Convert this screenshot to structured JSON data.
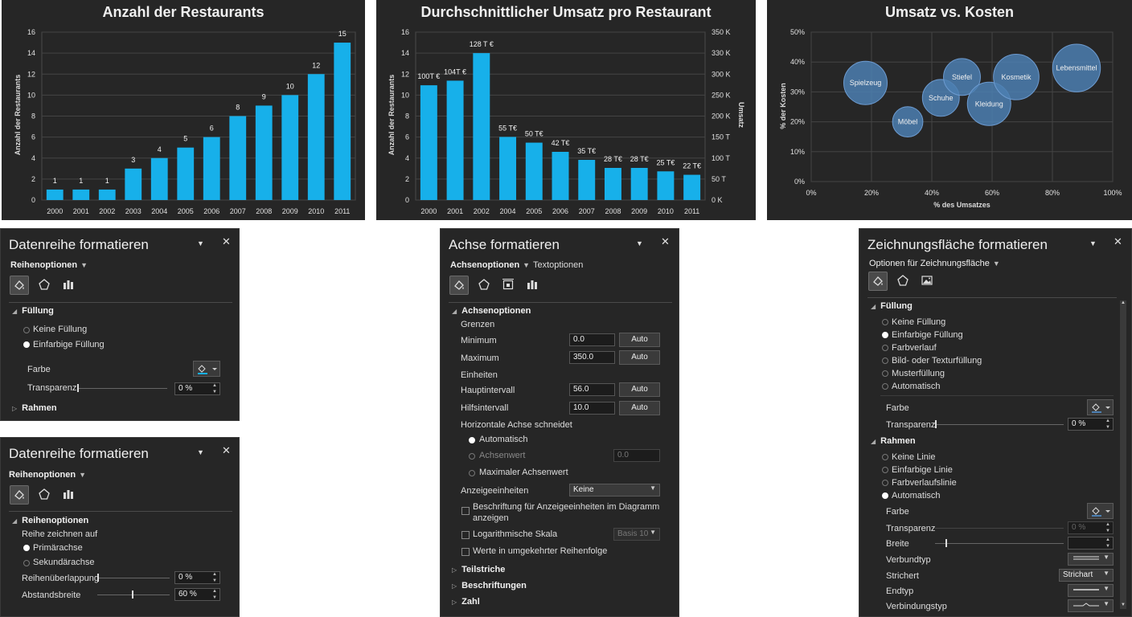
{
  "chart_data": [
    {
      "type": "bar",
      "title": "Anzahl der Restaurants",
      "ylabel": "Anzahl der Restaurants",
      "xlabel": "",
      "categories": [
        "2000",
        "2001",
        "2002",
        "2003",
        "2004",
        "2005",
        "2006",
        "2007",
        "2008",
        "2009",
        "2010",
        "2011"
      ],
      "values": [
        1,
        1,
        1,
        3,
        4,
        5,
        6,
        8,
        9,
        10,
        12,
        15
      ],
      "data_labels": [
        "1",
        "1",
        "1",
        "3",
        "4",
        "5",
        "6",
        "8",
        "9",
        "10",
        "12",
        "15"
      ],
      "ylim": [
        0,
        16
      ],
      "yticks": [
        "0",
        "2",
        "4",
        "6",
        "8",
        "10",
        "12",
        "14",
        "16"
      ],
      "bar_color": "#17b0ea",
      "grid": true
    },
    {
      "type": "bar",
      "title": "Durchschnittlicher Umsatz pro Restaurant",
      "ylabel": "Anzahl der Restaurants",
      "y2label": "Umsatz",
      "categories": [
        "2000",
        "2001",
        "2002",
        "2004",
        "2005",
        "2006",
        "2007",
        "2008",
        "2009",
        "2010",
        "2011"
      ],
      "values": [
        100,
        104,
        128,
        55,
        50,
        42,
        35,
        28,
        28,
        25,
        22
      ],
      "data_labels": [
        "100T €",
        "104T €",
        "128 T €",
        "55 T€",
        "50 T€",
        "42 T€",
        "35 T€",
        "28 T€",
        "28 T€",
        "25 T€",
        "22 T€"
      ],
      "ylim": [
        0,
        16
      ],
      "yticks": [
        "0",
        "2",
        "4",
        "6",
        "8",
        "10",
        "12",
        "14",
        "16"
      ],
      "y2lim": [
        0,
        350
      ],
      "y2ticks": [
        "0 K",
        "50 T",
        "100 T",
        "150 T",
        "200 K",
        "250 K",
        "300 K",
        "330 K",
        "350 K"
      ],
      "bar_color": "#17b0ea",
      "grid": true
    },
    {
      "type": "scatter",
      "title": "Umsatz vs. Kosten",
      "xlabel": "% des Umsatzes",
      "ylabel": "% der Kosten",
      "xlim": [
        0,
        100
      ],
      "ylim": [
        0,
        50
      ],
      "xticks": [
        "0%",
        "20%",
        "40%",
        "60%",
        "80%",
        "100%"
      ],
      "yticks": [
        "0%",
        "10%",
        "20%",
        "30%",
        "40%",
        "50%"
      ],
      "points": [
        {
          "label": "Spielzeug",
          "x": 18,
          "y": 33,
          "size": 1.0
        },
        {
          "label": "Möbel",
          "x": 32,
          "y": 20,
          "size": 0.7
        },
        {
          "label": "Schuhe",
          "x": 43,
          "y": 28,
          "size": 0.85
        },
        {
          "label": "Stiefel",
          "x": 50,
          "y": 35,
          "size": 0.85
        },
        {
          "label": "Kleidung",
          "x": 59,
          "y": 26,
          "size": 1.0
        },
        {
          "label": "Kosmetik",
          "x": 68,
          "y": 35,
          "size": 1.05
        },
        {
          "label": "Lebensmittel",
          "x": 88,
          "y": 38,
          "size": 1.1
        }
      ],
      "bubble_color": "#4c7fb2",
      "grid": true
    }
  ],
  "pane1": {
    "title": "Datenreihe formatieren",
    "options_label": "Reihenoptionen",
    "section_fill": "Füllung",
    "no_fill": "Keine Füllung",
    "solid_fill": "Einfarbige Füllung",
    "color_label": "Farbe",
    "transparency_label": "Transparenz",
    "transparency_value": "0 %",
    "transparency": 0,
    "section_border": "Rahmen"
  },
  "pane2": {
    "title": "Datenreihe formatieren",
    "options_label": "Reihenoptionen",
    "section": "Reihenoptionen",
    "plot_on_label": "Reihe zeichnen auf",
    "primary_axis": "Primärachse",
    "secondary_axis": "Sekundärachse",
    "overlap_label": "Reihenüberlappung",
    "overlap_value": "0 %",
    "overlap": 0,
    "gap_label": "Abstandsbreite",
    "gap_value": "60 %",
    "gap": 0.6
  },
  "pane3": {
    "title": "Achse formatieren",
    "tab_axis": "Achsenoptionen",
    "tab_text": "Textoptionen",
    "section": "Achsenoptionen",
    "bounds_label": "Grenzen",
    "minimum_label": "Minimum",
    "minimum_value": "0.0",
    "maximum_label": "Maximum",
    "maximum_value": "350.0",
    "auto_label": "Auto",
    "units_label": "Einheiten",
    "major_label": "Hauptintervall",
    "major_value": "56.0",
    "minor_label": "Hilfsintervall",
    "minor_value": "10.0",
    "crosses_label": "Horizontale Achse schneidet",
    "crosses_auto": "Automatisch",
    "crosses_value": "Achsenwert",
    "crosses_value_field": "0.0",
    "crosses_max": "Maximaler Achsenwert",
    "display_units_label": "Anzeigeeinheiten",
    "display_units_value": "Keine",
    "show_units_label_line1": "Beschriftung für Anzeigeeinheiten im Diagramm",
    "show_units_label_line2": "anzeigen",
    "log_scale_label": "Logarithmische Skala",
    "log_base_value": "Basis 10",
    "reverse_label": "Werte in umgekehrter Reihenfolge",
    "sec_ticks": "Teilstriche",
    "sec_labels": "Beschriftungen",
    "sec_number": "Zahl"
  },
  "pane4": {
    "title": "Zeichnungsfläche formatieren",
    "options_label": "Optionen für Zeichnungsfläche",
    "section_fill": "Füllung",
    "fill_none": "Keine Füllung",
    "fill_solid": "Einfarbige Füllung",
    "fill_gradient": "Farbverlauf",
    "fill_picture": "Bild- oder Texturfüllung",
    "fill_pattern": "Musterfüllung",
    "fill_auto": "Automatisch",
    "color_label": "Farbe",
    "transparency_label": "Transparenz",
    "transparency_value": "0 %",
    "transparency": 0,
    "section_border": "Rahmen",
    "line_none": "Keine Linie",
    "line_solid": "Einfarbige Linie",
    "line_gradient": "Farbverlaufslinie",
    "line_auto": "Automatisch",
    "border_color_label": "Farbe",
    "border_transparency_label": "Transparenz",
    "border_transparency_value": "0 %",
    "width_label": "Breite",
    "compound_label": "Verbundtyp",
    "dash_label": "Strichert",
    "dash_value": "Strichart",
    "cap_label": "Endtyp",
    "join_label": "Verbindungstyp"
  }
}
